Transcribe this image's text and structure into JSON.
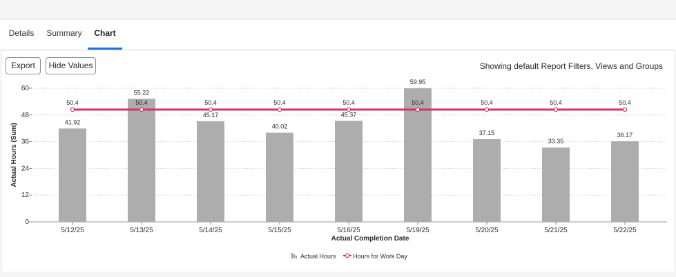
{
  "tabs": [
    {
      "label": "Details"
    },
    {
      "label": "Summary"
    },
    {
      "label": "Chart"
    }
  ],
  "toolbar": {
    "export_label": "Export",
    "hide_values_label": "Hide Values",
    "filters_text": "Showing default Report Filters, Views and Groups"
  },
  "colors": {
    "bar": "#adadad",
    "line": "#d6306e",
    "accent": "#1473e6"
  },
  "chart_data": {
    "type": "bar",
    "categories": [
      "5/12/25",
      "5/13/25",
      "5/14/25",
      "5/15/25",
      "5/16/25",
      "5/19/25",
      "5/20/25",
      "5/21/25",
      "5/22/25"
    ],
    "series": [
      {
        "name": "Actual Hours",
        "type": "bar",
        "values": [
          41.92,
          55.22,
          45.17,
          40.02,
          45.37,
          59.95,
          37.15,
          33.35,
          36.17
        ],
        "labels": [
          "41.92",
          "55.22",
          "45.17",
          "40.02",
          "45.37",
          "59.95",
          "37.15",
          "33.35",
          "36.17"
        ]
      },
      {
        "name": "Hours for Work Day",
        "type": "line",
        "values": [
          50.4,
          50.4,
          50.4,
          50.4,
          50.4,
          50.4,
          50.4,
          50.4,
          50.4
        ],
        "labels": [
          "50.4",
          "50.4",
          "50.4",
          "50.4",
          "50.4",
          "50.4",
          "50.4",
          "50.4",
          "50.4"
        ]
      }
    ],
    "xlabel": "Actual Completion Date",
    "ylabel": "Actual Hours (Sum)",
    "ylim": [
      0,
      60
    ],
    "yticks": [
      0,
      12,
      24,
      36,
      48,
      60
    ],
    "ytick_labels": [
      "0",
      "12",
      "24",
      "36",
      "48",
      "60"
    ],
    "grid": true,
    "legend_position": "bottom"
  }
}
